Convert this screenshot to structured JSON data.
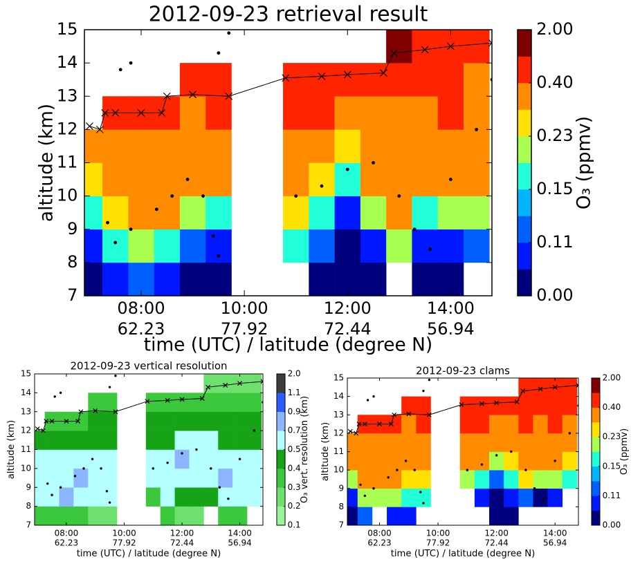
{
  "chart_data": [
    {
      "type": "heatmap",
      "title": "2012-09-23 retrieval result",
      "xlabel": "time (UTC) / latitude (degree N)",
      "ylabel": "altitude (km)",
      "xlim": [
        6.9,
        14.8
      ],
      "ylim": [
        7,
        15
      ],
      "xticks": [
        {
          "value": 8,
          "label": "08:00"
        },
        {
          "value": 10,
          "label": "10:00"
        },
        {
          "value": 12,
          "label": "12:00"
        },
        {
          "value": 14,
          "label": "14:00"
        }
      ],
      "xtick_sublabels": [
        "62.23",
        "77.92",
        "72.44",
        "56.94"
      ],
      "yticks": [
        7,
        8,
        9,
        10,
        11,
        12,
        13,
        14,
        15
      ],
      "x": [
        7.0,
        7.5,
        8.0,
        8.5,
        9.0,
        9.5,
        10.0,
        10.5,
        11.0,
        11.5,
        12.0,
        12.5,
        13.0,
        13.5,
        14.0,
        14.5
      ],
      "y": [
        7.5,
        8.5,
        9.5,
        10.5,
        11.5,
        12.5,
        13.5,
        14.5
      ],
      "z": [
        [
          0.05,
          0.1,
          0.17,
          0.25,
          0.35,
          null,
          null,
          null
        ],
        [
          0.1,
          0.17,
          0.25,
          0.35,
          0.35,
          0.6,
          null,
          null
        ],
        [
          0.12,
          0.2,
          0.3,
          0.35,
          0.35,
          0.6,
          null,
          null
        ],
        [
          0.1,
          0.17,
          0.35,
          0.35,
          0.35,
          0.6,
          null,
          null
        ],
        [
          0.05,
          0.12,
          0.2,
          0.3,
          0.35,
          0.35,
          0.6,
          null
        ],
        [
          0.05,
          0.1,
          0.17,
          0.3,
          0.35,
          0.6,
          0.6,
          null
        ],
        [
          null,
          null,
          null,
          null,
          null,
          null,
          null,
          null
        ],
        [
          null,
          null,
          null,
          null,
          null,
          null,
          null,
          null
        ],
        [
          null,
          0.15,
          0.25,
          0.35,
          0.35,
          0.6,
          0.6,
          null
        ],
        [
          0.05,
          0.12,
          0.17,
          0.25,
          0.3,
          0.6,
          0.6,
          null
        ],
        [
          0.05,
          0.05,
          0.1,
          0.17,
          0.25,
          0.35,
          0.6,
          null
        ],
        [
          0.05,
          0.1,
          0.2,
          0.3,
          0.35,
          0.35,
          0.6,
          null
        ],
        [
          null,
          0.2,
          0.35,
          0.35,
          0.35,
          0.35,
          0.6,
          1.2
        ],
        [
          0.05,
          0.1,
          0.17,
          0.35,
          0.35,
          0.35,
          0.6,
          0.8
        ],
        [
          0.05,
          0.1,
          0.2,
          0.35,
          0.35,
          0.6,
          0.6,
          0.8
        ],
        [
          null,
          0.12,
          0.2,
          0.3,
          0.35,
          0.35,
          0.35,
          0.6
        ]
      ],
      "colorbar": {
        "label": "O₃ (ppmv)",
        "levels": [
          0,
          0.09,
          0.11,
          0.13,
          0.15,
          0.19,
          0.23,
          0.3,
          0.4,
          1.0,
          2.0
        ],
        "colors": [
          "#00007f",
          "#0018ff",
          "#0060ff",
          "#00b4ff",
          "#20ffd8",
          "#a8ff50",
          "#ffe000",
          "#ff8c00",
          "#ff2400",
          "#800000"
        ],
        "ticks": [
          {
            "value": 0,
            "label": "0.00"
          },
          {
            "value": 0.11,
            "label": "0.11"
          },
          {
            "value": 0.15,
            "label": "0.15"
          },
          {
            "value": 0.23,
            "label": "0.23"
          },
          {
            "value": 0.4,
            "label": "0.40"
          },
          {
            "value": 2.0,
            "label": "2.00"
          }
        ]
      },
      "line": {
        "x": [
          7.0,
          7.2,
          7.3,
          7.5,
          8.0,
          8.4,
          8.5,
          9.0,
          9.7,
          10.8,
          11.5,
          12.0,
          12.7,
          12.9,
          13.5,
          14.0,
          14.8
        ],
        "y": [
          12.1,
          12.0,
          12.5,
          12.5,
          12.5,
          12.5,
          13.0,
          13.05,
          13.0,
          13.55,
          13.6,
          13.65,
          13.7,
          14.3,
          14.4,
          14.5,
          14.6
        ]
      },
      "points": {
        "x": [
          7.35,
          7.5,
          7.8,
          8.3,
          8.6,
          8.9,
          9.2,
          9.4,
          9.5,
          7.6,
          7.8,
          9.5,
          9.7,
          11.0,
          11.5,
          12.0,
          12.5,
          13.0,
          13.3,
          13.6,
          14.0,
          14.5,
          14.8
        ],
        "y": [
          9.2,
          8.6,
          9.0,
          9.6,
          10.0,
          10.5,
          10.0,
          8.8,
          8.2,
          13.8,
          14.0,
          14.3,
          14.9,
          10.0,
          10.3,
          10.8,
          11.0,
          10.0,
          9.0,
          8.4,
          10.5,
          12.0,
          13.5
        ]
      }
    },
    {
      "type": "heatmap",
      "title": "2012-09-23 vertical resolution",
      "xlabel": "time (UTC) / latitude (degree N)",
      "ylabel": "altitude (km)",
      "xlim": [
        6.9,
        14.8
      ],
      "ylim": [
        7,
        15
      ],
      "xticks": [
        {
          "value": 8,
          "label": "08:00"
        },
        {
          "value": 10,
          "label": "10:00"
        },
        {
          "value": 12,
          "label": "12:00"
        },
        {
          "value": 14,
          "label": "14:00"
        }
      ],
      "xtick_sublabels": [
        "62.23",
        "77.92",
        "72.44",
        "56.94"
      ],
      "yticks": [
        7,
        8,
        9,
        10,
        11,
        12,
        13,
        14,
        15
      ],
      "x": [
        7.0,
        7.5,
        8.0,
        8.5,
        9.0,
        9.5,
        10.0,
        10.5,
        11.0,
        11.5,
        12.0,
        12.5,
        13.0,
        13.5,
        14.0,
        14.5
      ],
      "y": [
        7.5,
        8.5,
        9.5,
        10.5,
        11.5,
        12.5,
        13.5,
        14.5
      ],
      "z": [
        [
          0.35,
          0.6,
          0.6,
          0.6,
          0.45,
          null,
          null,
          null
        ],
        [
          0.35,
          0.6,
          0.6,
          0.6,
          0.45,
          0.35,
          null,
          null
        ],
        [
          0.35,
          0.8,
          0.6,
          0.6,
          0.45,
          0.35,
          null,
          null
        ],
        [
          0.35,
          0.6,
          0.8,
          0.6,
          0.45,
          0.35,
          null,
          null
        ],
        [
          0.25,
          0.6,
          0.6,
          0.6,
          0.45,
          0.45,
          0.35,
          null
        ],
        [
          0.25,
          0.6,
          0.6,
          0.6,
          0.45,
          0.45,
          0.35,
          null
        ],
        [
          null,
          null,
          null,
          null,
          null,
          null,
          null,
          null
        ],
        [
          null,
          null,
          null,
          null,
          null,
          null,
          null,
          null
        ],
        [
          null,
          0.35,
          0.6,
          0.6,
          0.45,
          0.45,
          0.35,
          null
        ],
        [
          0.35,
          0.6,
          0.6,
          0.6,
          0.45,
          0.45,
          0.35,
          null
        ],
        [
          0.25,
          0.45,
          0.6,
          0.8,
          0.6,
          0.45,
          0.35,
          null
        ],
        [
          0.25,
          0.45,
          0.6,
          0.6,
          0.6,
          0.45,
          0.35,
          null
        ],
        [
          null,
          0.45,
          0.6,
          0.6,
          0.6,
          0.45,
          0.35,
          0.25
        ],
        [
          0.35,
          0.6,
          0.8,
          0.6,
          0.45,
          0.45,
          0.35,
          0.25
        ],
        [
          0.35,
          0.6,
          0.6,
          0.6,
          0.45,
          0.45,
          0.35,
          0.25
        ],
        [
          null,
          0.6,
          0.6,
          0.6,
          0.45,
          0.45,
          0.35,
          0.25
        ]
      ],
      "colorbar": {
        "label": "O₃ vert. resolution (km)",
        "levels": [
          0.1,
          0.2,
          0.3,
          0.4,
          0.5,
          0.7,
          0.9,
          1.1,
          2.0
        ],
        "colors": [
          "#98f598",
          "#6ee06e",
          "#3cc83c",
          "#16a416",
          "#b4ffff",
          "#8cb4ff",
          "#2c5cff",
          "#3c3c3c"
        ],
        "ticks": [
          0.1,
          0.2,
          0.3,
          0.4,
          0.5,
          0.7,
          0.9,
          1.1,
          {
            "value": 2.0,
            "label": "2.0"
          }
        ]
      },
      "line": {
        "x": [
          7.0,
          7.2,
          7.3,
          7.5,
          8.0,
          8.4,
          8.5,
          9.0,
          9.7,
          10.8,
          11.5,
          12.0,
          12.7,
          12.9,
          13.5,
          14.0,
          14.8
        ],
        "y": [
          12.1,
          12.0,
          12.5,
          12.5,
          12.5,
          12.5,
          13.0,
          13.05,
          13.0,
          13.55,
          13.6,
          13.65,
          13.7,
          14.3,
          14.4,
          14.5,
          14.6
        ]
      },
      "points": {
        "x": [
          7.35,
          7.5,
          7.8,
          8.3,
          8.6,
          8.9,
          9.2,
          9.4,
          9.5,
          7.6,
          7.8,
          9.5,
          9.7,
          11.0,
          11.5,
          12.0,
          12.5,
          13.0,
          13.3,
          13.6,
          14.0,
          14.5,
          14.8
        ],
        "y": [
          9.2,
          8.6,
          9.0,
          9.6,
          10.0,
          10.5,
          10.0,
          8.8,
          8.2,
          13.8,
          14.0,
          14.3,
          14.9,
          10.0,
          10.3,
          10.8,
          11.0,
          10.0,
          9.0,
          8.4,
          10.5,
          12.0,
          13.5
        ]
      }
    },
    {
      "type": "heatmap",
      "title": "2012-09-23 clams",
      "xlabel": "time (UTC) / latitude (degree N)",
      "ylabel": "altitude (km)",
      "xlim": [
        6.9,
        14.8
      ],
      "ylim": [
        7,
        15
      ],
      "xticks": [
        {
          "value": 8,
          "label": "08:00"
        },
        {
          "value": 10,
          "label": "10:00"
        },
        {
          "value": 12,
          "label": "12:00"
        },
        {
          "value": 14,
          "label": "14:00"
        }
      ],
      "xtick_sublabels": [
        "62.23",
        "77.92",
        "72.44",
        "56.94"
      ],
      "yticks": [
        7,
        8,
        9,
        10,
        11,
        12,
        13,
        14,
        15
      ],
      "x": [
        7.0,
        7.5,
        8.0,
        8.5,
        9.0,
        9.5,
        10.0,
        10.5,
        11.0,
        11.5,
        12.0,
        12.5,
        13.0,
        13.5,
        14.0,
        14.5
      ],
      "y": [
        7.5,
        8.5,
        9.5,
        10.5,
        11.5,
        12.5,
        13.5,
        14.5
      ],
      "z": [
        [
          0.05,
          0.1,
          0.2,
          0.3,
          0.35,
          null,
          null,
          null
        ],
        [
          0.12,
          0.2,
          0.3,
          0.35,
          0.35,
          0.6,
          null,
          null
        ],
        [
          null,
          0.2,
          0.3,
          0.35,
          0.35,
          0.6,
          null,
          null
        ],
        [
          0.1,
          0.2,
          0.3,
          0.35,
          0.35,
          0.6,
          null,
          null
        ],
        [
          0.1,
          0.15,
          0.25,
          0.35,
          0.35,
          0.35,
          0.6,
          null
        ],
        [
          null,
          0.17,
          0.25,
          0.35,
          0.35,
          0.6,
          0.6,
          null
        ],
        [
          null,
          null,
          null,
          null,
          null,
          null,
          null,
          null
        ],
        [
          null,
          null,
          null,
          null,
          null,
          null,
          null,
          null
        ],
        [
          null,
          null,
          0.2,
          0.3,
          0.35,
          0.6,
          0.6,
          null
        ],
        [
          null,
          0.1,
          0.17,
          0.3,
          0.35,
          0.6,
          0.6,
          null
        ],
        [
          0.05,
          0.05,
          0.12,
          0.2,
          0.3,
          0.35,
          0.6,
          null
        ],
        [
          0.05,
          0.1,
          0.17,
          0.25,
          0.35,
          0.35,
          0.6,
          null
        ],
        [
          null,
          0.12,
          0.25,
          0.3,
          0.35,
          0.6,
          0.6,
          0.8
        ],
        [
          null,
          0.05,
          0.2,
          0.35,
          0.35,
          0.35,
          0.6,
          0.8
        ],
        [
          null,
          0.1,
          0.2,
          0.3,
          0.35,
          0.6,
          0.6,
          0.8
        ],
        [
          null,
          null,
          0.15,
          0.25,
          0.35,
          0.35,
          0.6,
          0.6
        ]
      ],
      "colorbar": {
        "label": "O₃ (ppmv)",
        "levels": [
          0,
          0.09,
          0.11,
          0.13,
          0.15,
          0.19,
          0.23,
          0.3,
          0.4,
          1.0,
          2.0
        ],
        "colors": [
          "#00007f",
          "#0018ff",
          "#0060ff",
          "#00b4ff",
          "#20ffd8",
          "#a8ff50",
          "#ffe000",
          "#ff8c00",
          "#ff2400",
          "#800000"
        ],
        "ticks": [
          {
            "value": 0,
            "label": "0.00"
          },
          {
            "value": 0.11,
            "label": "0.11"
          },
          {
            "value": 0.15,
            "label": "0.15"
          },
          {
            "value": 0.23,
            "label": "0.23"
          },
          {
            "value": 0.4,
            "label": "0.40"
          },
          {
            "value": 2.0,
            "label": "2.00"
          }
        ]
      },
      "line": {
        "x": [
          7.0,
          7.2,
          7.3,
          7.5,
          8.0,
          8.4,
          8.5,
          9.0,
          9.7,
          10.8,
          11.5,
          12.0,
          12.7,
          12.9,
          13.5,
          14.0,
          14.8
        ],
        "y": [
          12.1,
          12.0,
          12.5,
          12.5,
          12.5,
          12.5,
          13.0,
          13.05,
          13.0,
          13.55,
          13.6,
          13.65,
          13.7,
          14.3,
          14.4,
          14.5,
          14.6
        ]
      },
      "points": {
        "x": [
          7.35,
          7.5,
          7.8,
          8.3,
          8.6,
          8.9,
          9.2,
          9.4,
          9.5,
          7.6,
          7.8,
          9.5,
          9.7,
          11.0,
          11.5,
          12.0,
          12.5,
          13.0,
          13.3,
          13.6,
          14.0,
          14.5,
          14.8
        ],
        "y": [
          9.2,
          8.6,
          9.0,
          9.6,
          10.0,
          10.5,
          10.0,
          8.8,
          8.2,
          13.8,
          14.0,
          14.3,
          14.9,
          10.0,
          10.3,
          10.8,
          11.0,
          10.0,
          9.0,
          8.4,
          10.5,
          12.0,
          13.5
        ]
      }
    }
  ]
}
